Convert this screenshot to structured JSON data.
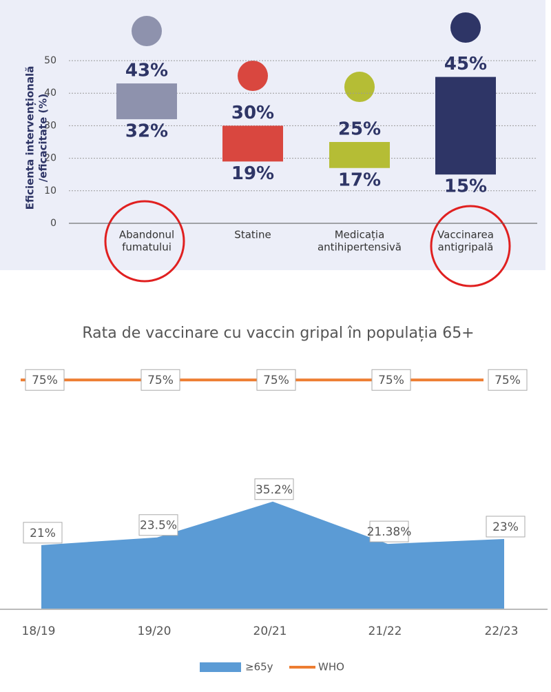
{
  "chart_data": [
    {
      "type": "floating_bar",
      "y_label": [
        "Eficienta intervențională",
        "/eficacitate (%)"
      ],
      "categories": [
        [
          "Abandonul",
          "fumatului"
        ],
        [
          "Statine"
        ],
        [
          "Medicația",
          "antihipertensivă"
        ],
        [
          "Vaccinarea",
          "antigripală"
        ]
      ],
      "values": [
        [
          32,
          43
        ],
        [
          19,
          30
        ],
        [
          17,
          25
        ],
        [
          15,
          45
        ]
      ],
      "value_labels": [
        [
          "32%",
          "43%"
        ],
        [
          "19%",
          "30%"
        ],
        [
          "17%",
          "25%"
        ],
        [
          "15%",
          "45%"
        ]
      ],
      "colors": [
        "#8e92ad",
        "#d9473f",
        "#b5bd35",
        "#2e3566"
      ],
      "ylim": [
        0,
        50
      ],
      "yticks": [
        0,
        10,
        20,
        30,
        40,
        50
      ],
      "grid": true
    },
    {
      "type": "area",
      "title": "Rata de vaccinare cu vaccin gripal în populația 65+",
      "categories": [
        "18/19",
        "19/20",
        "20/21",
        "21/22",
        "22/23"
      ],
      "series": [
        {
          "name": "≥65y",
          "color": "#5b9bd5",
          "type": "area",
          "values": [
            21,
            23.5,
            35.2,
            21.38,
            23
          ],
          "value_labels": [
            "21%",
            "23.5%",
            "35.2%",
            "21.38%",
            "23%"
          ]
        },
        {
          "name": "WHO",
          "color": "#ed7d31",
          "type": "line",
          "values": [
            75,
            75,
            75,
            75,
            75
          ],
          "value_labels": [
            "75%",
            "75%",
            "75%",
            "75%",
            "75%"
          ]
        }
      ],
      "ylim": [
        0,
        80
      ],
      "legend": "bottom"
    }
  ]
}
